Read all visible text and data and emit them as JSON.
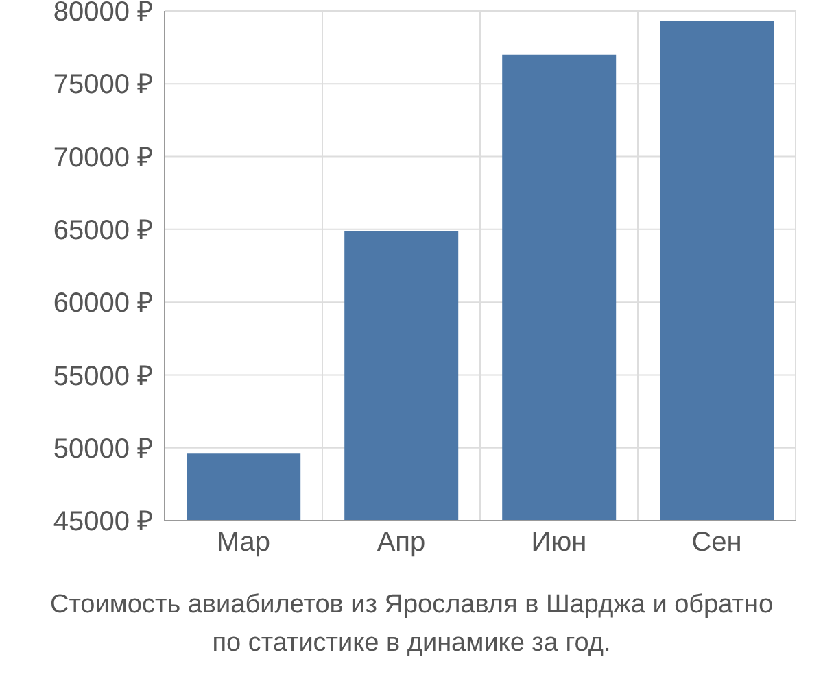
{
  "chart_data": {
    "type": "bar",
    "categories": [
      "Мар",
      "Апр",
      "Июн",
      "Сен"
    ],
    "values": [
      49600,
      64900,
      77000,
      79300
    ],
    "color": "#4d78a8",
    "ylim": [
      45000,
      80000
    ],
    "yticks": [
      {
        "value": 45000,
        "label": "45000 ₽"
      },
      {
        "value": 50000,
        "label": "50000 ₽"
      },
      {
        "value": 55000,
        "label": "55000 ₽"
      },
      {
        "value": 60000,
        "label": "60000 ₽"
      },
      {
        "value": 65000,
        "label": "65000 ₽"
      },
      {
        "value": 70000,
        "label": "70000 ₽"
      },
      {
        "value": 75000,
        "label": "75000 ₽"
      },
      {
        "value": 80000,
        "label": "80000 ₽"
      }
    ],
    "grid": true,
    "annotations": [
      "Стоимость авиабилетов из Ярославля в Шарджа и обратно",
      "по статистике в динамике за год."
    ]
  }
}
